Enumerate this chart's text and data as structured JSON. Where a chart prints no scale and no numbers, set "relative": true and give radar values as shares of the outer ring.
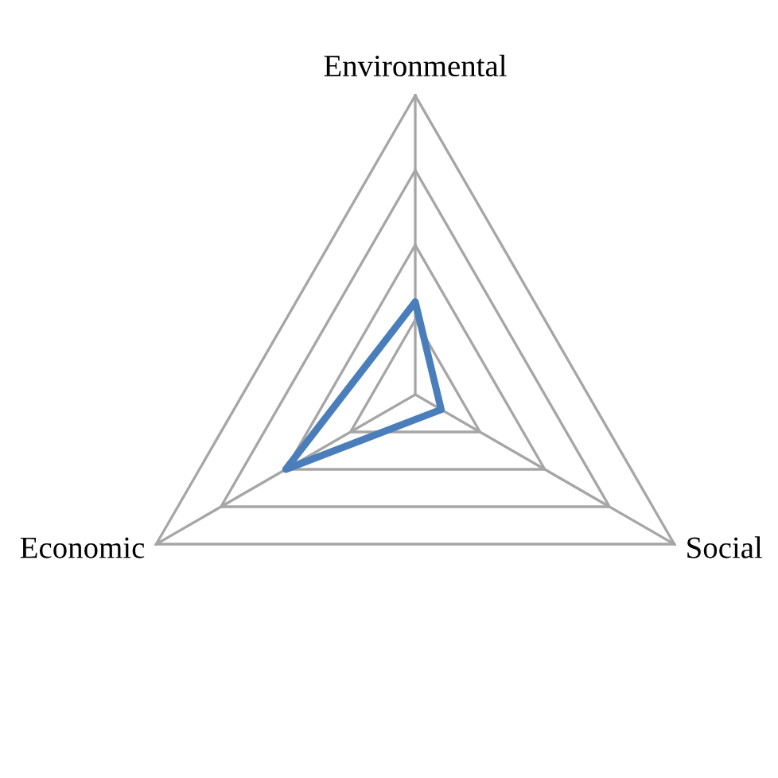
{
  "chart_data": {
    "type": "radar",
    "categories": [
      "Environmental",
      "Social",
      "Economic"
    ],
    "relative": true,
    "grid": true,
    "series": [
      {
        "color": "#4a7ebb",
        "values": [
          0.31,
          0.1,
          0.5
        ]
      }
    ]
  }
}
